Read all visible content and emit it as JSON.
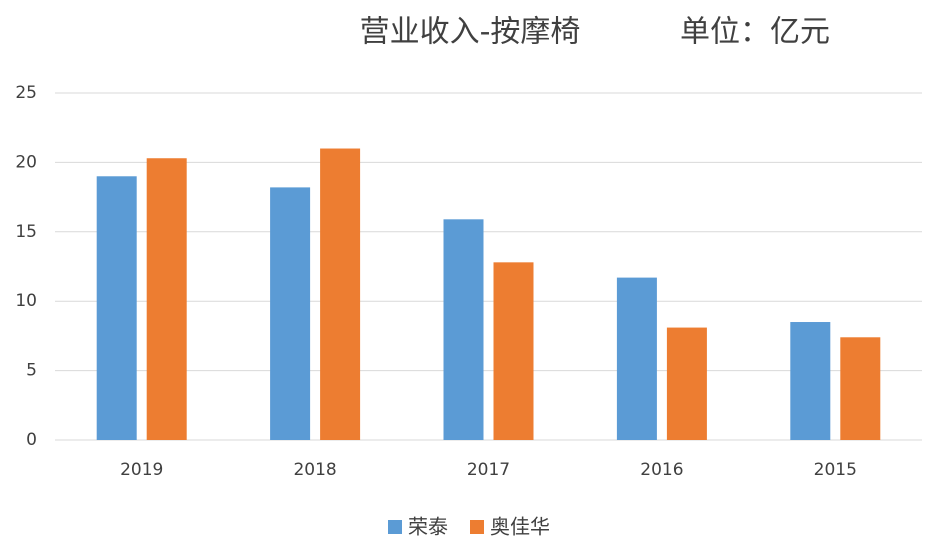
{
  "chart_data": {
    "type": "bar",
    "title": "营业收入-按摩椅",
    "subtitle": "单位：亿元",
    "categories": [
      "2019",
      "2018",
      "2017",
      "2016",
      "2015"
    ],
    "series": [
      {
        "name": "荣泰",
        "color": "#5b9bd5",
        "values": [
          19.0,
          18.2,
          15.9,
          11.7,
          8.5
        ]
      },
      {
        "name": "奥佳华",
        "color": "#ed7d31",
        "values": [
          20.3,
          21.0,
          12.8,
          8.1,
          7.4
        ]
      }
    ],
    "ylim": [
      0,
      25
    ],
    "yticks": [
      0,
      5,
      10,
      15,
      20,
      25
    ],
    "grid": true,
    "legend": "bottom"
  }
}
